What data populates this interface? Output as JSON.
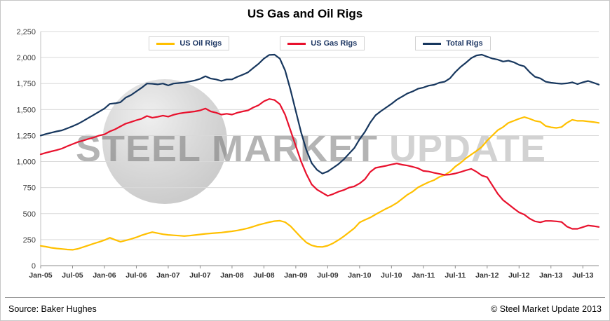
{
  "title": "US Gas and Oil Rigs",
  "watermark": {
    "part1": "STEEL MARKET",
    "part2": "UPDATE"
  },
  "footer": {
    "source": "Source: Baker Hughes",
    "copyright": "© Steel Market Update 2013"
  },
  "chart_data": {
    "type": "line",
    "title": "US Gas and Oil Rigs",
    "xlabel": "",
    "ylabel": "",
    "ylim": [
      0,
      2250
    ],
    "ytick_step": 250,
    "ytick_labels": [
      "0",
      "250",
      "500",
      "750",
      "1,000",
      "1,250",
      "1,500",
      "1,750",
      "2,000",
      "2,250"
    ],
    "x_tick_labels": [
      "Jan-05",
      "Jul-05",
      "Jan-06",
      "Jul-06",
      "Jan-07",
      "Jul-07",
      "Jan-08",
      "Jul-08",
      "Jan-09",
      "Jul-09",
      "Jan-10",
      "Jul-10",
      "Jan-11",
      "Jul-11",
      "Jan-12",
      "Jul-12",
      "Jan-13",
      "Jul-13"
    ],
    "x_tick_every": 6,
    "x_unit": "month",
    "grid": true,
    "legend_position": "top-center",
    "grid_color": "#d9d9d9",
    "series": [
      {
        "name": "US Oil Rigs",
        "color": "#FFC000",
        "values": [
          190,
          182,
          172,
          165,
          160,
          155,
          152,
          162,
          178,
          195,
          212,
          228,
          245,
          268,
          248,
          230,
          242,
          256,
          272,
          292,
          308,
          322,
          312,
          302,
          296,
          292,
          288,
          284,
          288,
          294,
          300,
          306,
          310,
          314,
          318,
          324,
          330,
          338,
          348,
          360,
          375,
          392,
          405,
          418,
          428,
          432,
          418,
          380,
          325,
          270,
          222,
          195,
          182,
          180,
          192,
          215,
          245,
          280,
          320,
          360,
          415,
          440,
          462,
          492,
          520,
          548,
          572,
          602,
          642,
          682,
          712,
          752,
          778,
          802,
          822,
          852,
          872,
          902,
          952,
          988,
          1032,
          1068,
          1102,
          1142,
          1202,
          1252,
          1302,
          1332,
          1372,
          1392,
          1412,
          1428,
          1412,
          1392,
          1382,
          1342,
          1330,
          1324,
          1332,
          1372,
          1402,
          1392,
          1392,
          1386,
          1380,
          1372
        ]
      },
      {
        "name": "US Gas Rigs",
        "color": "#E8112D",
        "values": [
          1070,
          1085,
          1098,
          1110,
          1125,
          1148,
          1168,
          1188,
          1202,
          1218,
          1232,
          1250,
          1262,
          1290,
          1310,
          1338,
          1365,
          1380,
          1398,
          1412,
          1438,
          1422,
          1430,
          1442,
          1432,
          1450,
          1462,
          1470,
          1476,
          1482,
          1492,
          1510,
          1482,
          1470,
          1452,
          1460,
          1452,
          1470,
          1482,
          1492,
          1520,
          1542,
          1580,
          1602,
          1592,
          1552,
          1450,
          1300,
          1150,
          1000,
          880,
          780,
          730,
          700,
          670,
          688,
          710,
          726,
          750,
          762,
          790,
          830,
          900,
          940,
          950,
          960,
          972,
          982,
          970,
          962,
          950,
          936,
          910,
          905,
          892,
          882,
          872,
          876,
          886,
          900,
          916,
          930,
          902,
          866,
          850,
          770,
          690,
          630,
          590,
          550,
          512,
          490,
          452,
          426,
          416,
          430,
          430,
          426,
          420,
          376,
          354,
          354,
          370,
          386,
          380,
          372
        ]
      },
      {
        "name": "Total Rigs",
        "color": "#17375E",
        "values": [
          1250,
          1265,
          1278,
          1290,
          1300,
          1320,
          1340,
          1362,
          1390,
          1420,
          1450,
          1480,
          1510,
          1555,
          1560,
          1570,
          1615,
          1640,
          1675,
          1710,
          1750,
          1748,
          1742,
          1750,
          1732,
          1750,
          1755,
          1760,
          1770,
          1780,
          1795,
          1820,
          1798,
          1790,
          1775,
          1790,
          1790,
          1815,
          1835,
          1858,
          1900,
          1940,
          1990,
          2025,
          2028,
          1990,
          1875,
          1690,
          1485,
          1280,
          1110,
          985,
          920,
          885,
          905,
          940,
          975,
          1020,
          1075,
          1130,
          1215,
          1285,
          1375,
          1445,
          1485,
          1520,
          1555,
          1595,
          1625,
          1655,
          1675,
          1700,
          1712,
          1730,
          1738,
          1758,
          1768,
          1800,
          1860,
          1910,
          1950,
          1995,
          2020,
          2028,
          2008,
          1990,
          1980,
          1962,
          1970,
          1955,
          1930,
          1915,
          1860,
          1815,
          1800,
          1768,
          1758,
          1752,
          1748,
          1752,
          1762,
          1745,
          1762,
          1775,
          1758,
          1740
        ]
      }
    ]
  }
}
